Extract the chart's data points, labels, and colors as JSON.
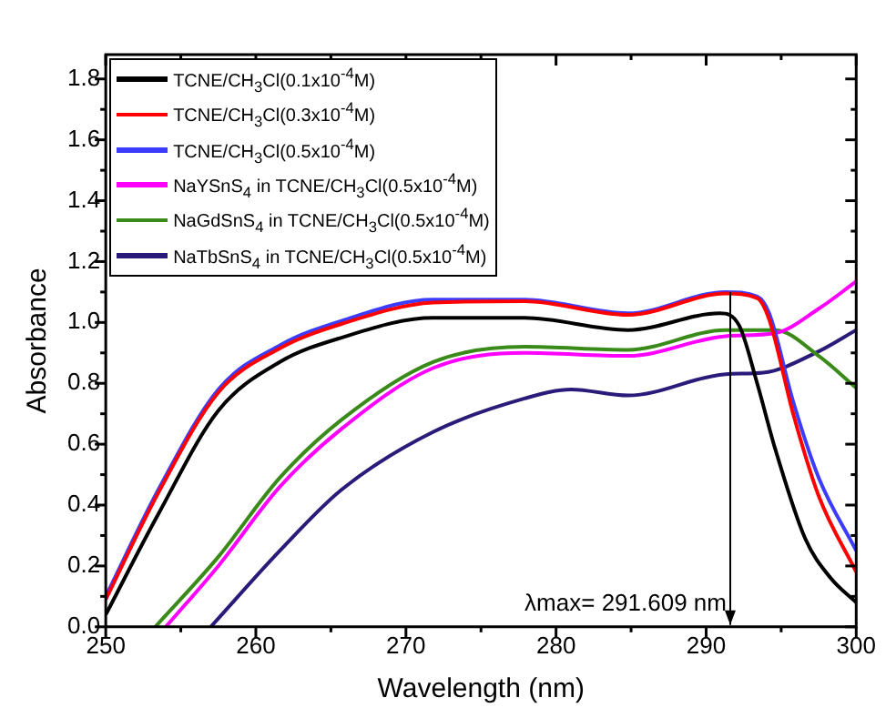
{
  "chart_data": {
    "type": "line",
    "xlabel": "Wavelength (nm)",
    "ylabel": "Absorbance",
    "xlim": [
      250,
      300
    ],
    "xticks": [
      250,
      {
        "value": 255,
        "label": null
      },
      260,
      {
        "value": 265,
        "label": null
      },
      270,
      {
        "value": 275,
        "label": null
      },
      280,
      {
        "value": 285,
        "label": null
      },
      290,
      {
        "value": 295,
        "label": null
      },
      300
    ],
    "ylim": [
      0,
      1.88
    ],
    "yticks": [
      "0.0",
      {
        "value": 0.1,
        "label": null
      },
      {
        "value": 0.2,
        "label": "0.2"
      },
      {
        "value": 0.3,
        "label": null
      },
      {
        "value": 0.4,
        "label": "0.4"
      },
      {
        "value": 0.5,
        "label": null
      },
      {
        "value": 0.6,
        "label": "0.6"
      },
      {
        "value": 0.7,
        "label": null
      },
      {
        "value": 0.8,
        "label": "0.8"
      },
      {
        "value": 0.9,
        "label": null
      },
      {
        "value": 1.0,
        "label": "1.0"
      },
      {
        "value": 1.1,
        "label": null
      },
      {
        "value": 1.2,
        "label": "1.2"
      },
      {
        "value": 1.3,
        "label": null
      },
      {
        "value": 1.4,
        "label": "1.4"
      },
      {
        "value": 1.5,
        "label": null
      },
      {
        "value": 1.6,
        "label": "1.6"
      },
      {
        "value": 1.7,
        "label": null
      },
      {
        "value": 1.8,
        "label": "1.8"
      }
    ],
    "grid": false,
    "legend": "top left",
    "marker": "none",
    "line_style": "solid",
    "annotations": [
      {
        "text": "λmax= 291.609 nm",
        "x": 291.609,
        "y": 1.1
      }
    ],
    "series": [
      {
        "name": "TCNE/CH$_{3}$Cl(0.1x10$^{-4}$M)",
        "color": "#000000",
        "x": [
          250,
          253.5,
          257.5,
          261.6,
          265.7,
          271.8,
          277.9,
          284.8,
          290.9,
          292.2,
          293.4,
          294.6,
          296.6,
          298.3,
          300
        ],
        "values": [
          0.04,
          0.37,
          0.71,
          0.87,
          0.95,
          1.015,
          1.015,
          0.975,
          1.03,
          0.99,
          0.8,
          0.585,
          0.29,
          0.16,
          0.08
        ]
      },
      {
        "name": "TCNE/CH$_{3}$Cl(0.3x10$^{-4}$M)",
        "color": "#ff0000",
        "x": [
          250,
          253.5,
          257.5,
          261.6,
          265.7,
          271.8,
          277.9,
          284.8,
          291.3,
          293.4,
          294.2,
          295.8,
          297.5,
          300
        ],
        "values": [
          0.09,
          0.44,
          0.77,
          0.915,
          0.995,
          1.065,
          1.07,
          1.025,
          1.095,
          1.08,
          1.01,
          0.7,
          0.43,
          0.18
        ]
      },
      {
        "name": "TCNE/CH$_{3}$Cl(0.5x10$^{-4}$M)",
        "color": "#3c3cff",
        "x": [
          250,
          253.5,
          257.5,
          261.6,
          265.7,
          271.8,
          277.9,
          284.8,
          291.3,
          293.4,
          294.2,
          295.8,
          297.5,
          300
        ],
        "values": [
          0.1,
          0.45,
          0.78,
          0.925,
          1.005,
          1.075,
          1.075,
          1.03,
          1.1,
          1.085,
          1.03,
          0.74,
          0.49,
          0.25
        ]
      },
      {
        "name": "NaYSnS$_{4}$ in TCNE/CH$_{3}$Cl(0.5x10$^{-4}$M)",
        "color": "#ff00ff",
        "x": [
          254,
          257.5,
          261.6,
          265.7,
          271.8,
          277.9,
          284.8,
          291.3,
          294.6,
          297.5,
          300
        ],
        "values": [
          0,
          0.2,
          0.46,
          0.65,
          0.85,
          0.9,
          0.89,
          0.955,
          0.965,
          1.045,
          1.135
        ]
      },
      {
        "name": "NaGdSnS$_{4}$ in TCNE/CH$_{3}$Cl(0.5x10$^{-4}$M)",
        "color": "#3a8a1a",
        "x": [
          253.3,
          257.5,
          261.6,
          265.7,
          271.8,
          277.9,
          284.8,
          291.3,
          294.6,
          297.5,
          300
        ],
        "values": [
          0,
          0.23,
          0.49,
          0.68,
          0.87,
          0.92,
          0.91,
          0.975,
          0.975,
          0.89,
          0.785
        ]
      },
      {
        "name": "NaTbSnS$_{4}$ in TCNE/CH$_{3}$Cl(0.5x10$^{-4}$M)",
        "color": "#2a1a7a",
        "x": [
          257,
          261.6,
          265.7,
          271.8,
          277.9,
          281,
          284.8,
          291.3,
          293.8,
          297.5,
          300
        ],
        "values": [
          0,
          0.25,
          0.45,
          0.64,
          0.75,
          0.78,
          0.76,
          0.83,
          0.835,
          0.905,
          0.975
        ]
      }
    ]
  }
}
